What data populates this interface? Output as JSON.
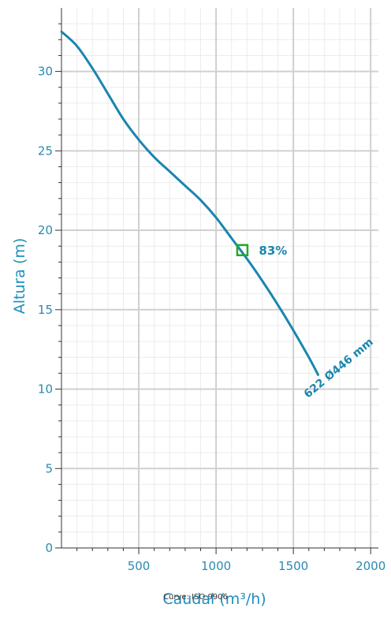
{
  "chart_data": {
    "type": "line",
    "xlabel": "Caudal (m³/h)",
    "ylabel": "Altura (m)",
    "xlim": [
      0,
      2050
    ],
    "ylim": [
      0,
      34
    ],
    "x_ticks": [
      500,
      1000,
      1500,
      2000
    ],
    "y_ticks": [
      0,
      5,
      10,
      15,
      20,
      25,
      30
    ],
    "grid": true,
    "series": [
      {
        "name": "622 Ø446 mm",
        "color": "#1a86ad",
        "x": [
          0,
          100,
          200,
          300,
          400,
          500,
          600,
          700,
          800,
          900,
          1000,
          1100,
          1200,
          1300,
          1400,
          1500,
          1600,
          1660
        ],
        "y": [
          32.5,
          31.6,
          30.2,
          28.6,
          27.0,
          25.7,
          24.6,
          23.7,
          22.8,
          21.9,
          20.8,
          19.5,
          18.2,
          16.8,
          15.3,
          13.7,
          12.0,
          10.9
        ]
      }
    ],
    "annotations": [
      {
        "text": "83%",
        "x": 1170,
        "y": 18.75,
        "marker": "square",
        "color": "#22aa22"
      },
      {
        "text": "622 Ø446 mm",
        "x": 1660,
        "y": 10.9
      }
    ]
  },
  "footer": "Curve: ISO 9906"
}
